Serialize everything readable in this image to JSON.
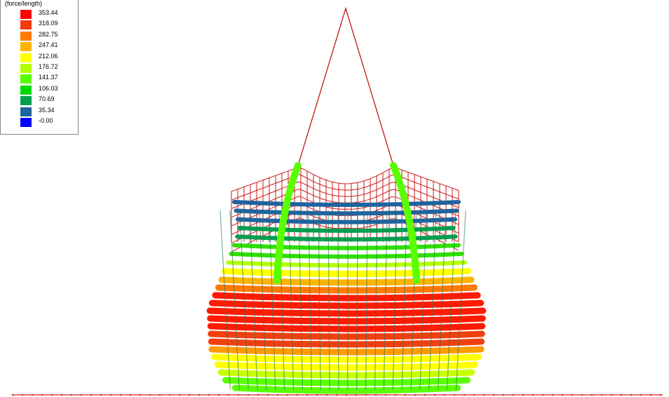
{
  "legend": {
    "title": "(force/length)",
    "entries": [
      {
        "label": "353.44",
        "color": "#ff0000"
      },
      {
        "label": "318.09",
        "color": "#f53a0b"
      },
      {
        "label": "282.75",
        "color": "#ff7a00"
      },
      {
        "label": "247.41",
        "color": "#ffb400"
      },
      {
        "label": "212.06",
        "color": "#ffff00"
      },
      {
        "label": "176.72",
        "color": "#b4ff00"
      },
      {
        "label": "141.37",
        "color": "#5aff00"
      },
      {
        "label": "106.03",
        "color": "#00dc00"
      },
      {
        "label": "70.69",
        "color": "#00a050"
      },
      {
        "label": "35.34",
        "color": "#1e64a0"
      },
      {
        "label": "-0.00",
        "color": "#0000ff"
      }
    ]
  }
}
